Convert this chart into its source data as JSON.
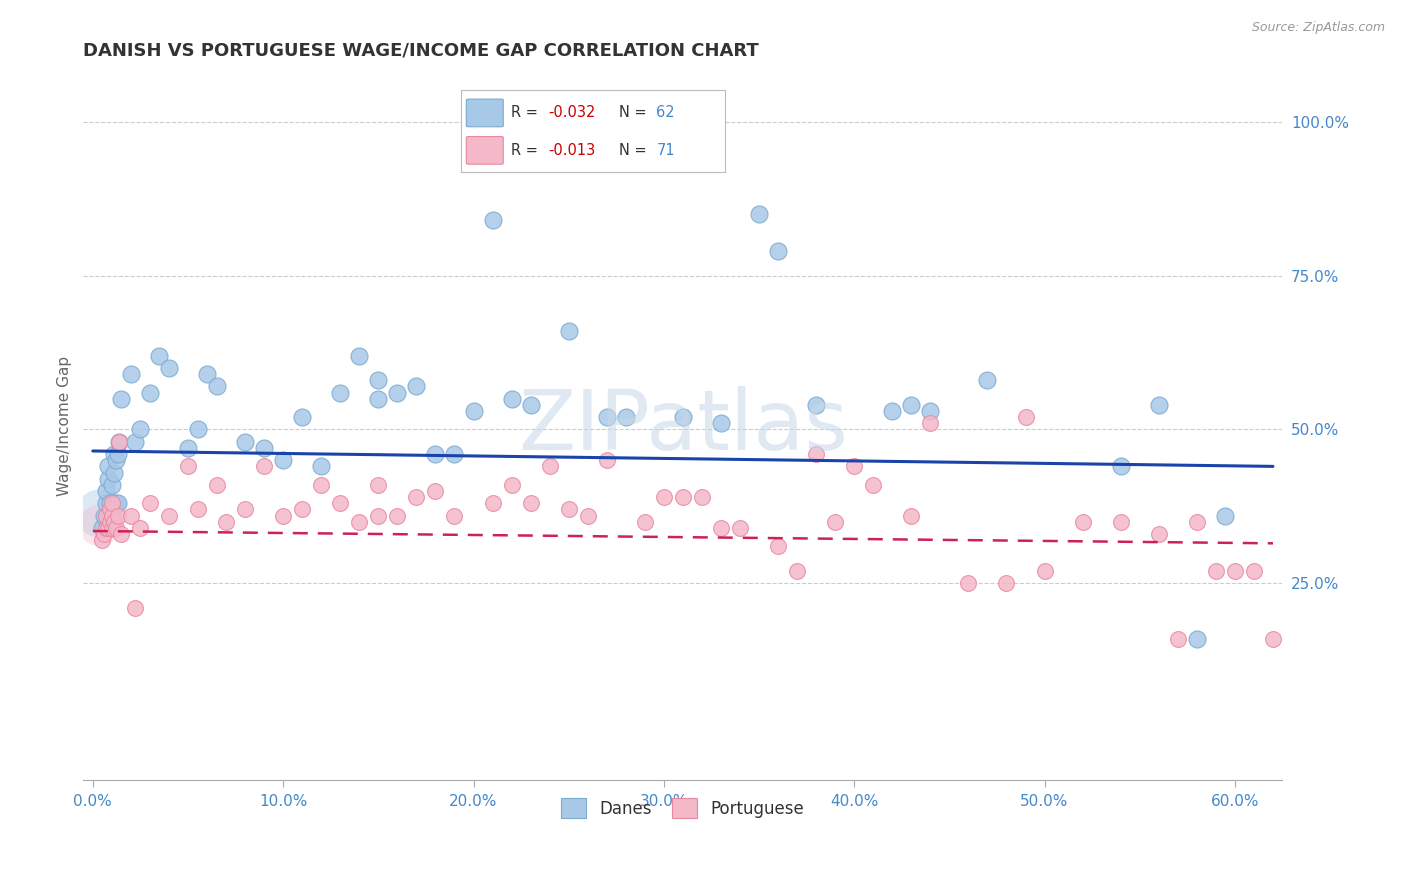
{
  "title": "DANISH VS PORTUGUESE WAGE/INCOME GAP CORRELATION CHART",
  "source": "Source: ZipAtlas.com",
  "ylabel": "Wage/Income Gap",
  "xlabel_ticks": [
    "0.0%",
    "10.0%",
    "20.0%",
    "30.0%",
    "40.0%",
    "50.0%",
    "60.0%"
  ],
  "xlabel_vals": [
    0.0,
    0.1,
    0.2,
    0.3,
    0.4,
    0.5,
    0.6
  ],
  "ylabel_ticks_right": [
    "100.0%",
    "75.0%",
    "50.0%",
    "25.0%"
  ],
  "ylabel_vals_right": [
    1.0,
    0.75,
    0.5,
    0.25
  ],
  "xlim": [
    -0.005,
    0.625
  ],
  "ylim": [
    -0.07,
    1.08
  ],
  "danes_R": "-0.032",
  "danes_N": 62,
  "portuguese_R": "-0.013",
  "portuguese_N": 71,
  "danes_color": "#a8c8e8",
  "portuguese_color": "#f4b8c8",
  "danes_edge_color": "#7aaace",
  "portuguese_edge_color": "#e888a0",
  "trendline_danes_color": "#1a44aa",
  "trendline_portuguese_color": "#cc2255",
  "background_color": "#ffffff",
  "grid_color": "#cccccc",
  "axis_label_color": "#4488cc",
  "title_color": "#333333",
  "watermark_text": "ZIPatlas",
  "legend_r_color": "#cc0000",
  "legend_n_color": "#4488cc",
  "danes_x": [
    0.005,
    0.006,
    0.007,
    0.007,
    0.008,
    0.008,
    0.009,
    0.009,
    0.01,
    0.01,
    0.01,
    0.011,
    0.011,
    0.012,
    0.012,
    0.013,
    0.013,
    0.014,
    0.015,
    0.02,
    0.022,
    0.025,
    0.03,
    0.035,
    0.04,
    0.05,
    0.055,
    0.06,
    0.065,
    0.08,
    0.09,
    0.1,
    0.11,
    0.12,
    0.13,
    0.14,
    0.15,
    0.15,
    0.16,
    0.17,
    0.18,
    0.19,
    0.2,
    0.21,
    0.22,
    0.23,
    0.25,
    0.27,
    0.28,
    0.31,
    0.33,
    0.35,
    0.36,
    0.38,
    0.42,
    0.43,
    0.44,
    0.47,
    0.54,
    0.56,
    0.58,
    0.595
  ],
  "danes_y": [
    0.34,
    0.36,
    0.38,
    0.4,
    0.42,
    0.44,
    0.36,
    0.38,
    0.34,
    0.37,
    0.41,
    0.43,
    0.46,
    0.38,
    0.45,
    0.38,
    0.46,
    0.48,
    0.55,
    0.59,
    0.48,
    0.5,
    0.56,
    0.62,
    0.6,
    0.47,
    0.5,
    0.59,
    0.57,
    0.48,
    0.47,
    0.45,
    0.52,
    0.44,
    0.56,
    0.62,
    0.55,
    0.58,
    0.56,
    0.57,
    0.46,
    0.46,
    0.53,
    0.84,
    0.55,
    0.54,
    0.66,
    0.52,
    0.52,
    0.52,
    0.51,
    0.85,
    0.79,
    0.54,
    0.53,
    0.54,
    0.53,
    0.58,
    0.44,
    0.54,
    0.16,
    0.36
  ],
  "portuguese_x": [
    0.005,
    0.006,
    0.007,
    0.007,
    0.008,
    0.009,
    0.009,
    0.01,
    0.01,
    0.01,
    0.011,
    0.012,
    0.013,
    0.014,
    0.015,
    0.02,
    0.022,
    0.025,
    0.03,
    0.04,
    0.05,
    0.055,
    0.065,
    0.07,
    0.08,
    0.09,
    0.1,
    0.11,
    0.12,
    0.13,
    0.14,
    0.15,
    0.15,
    0.16,
    0.17,
    0.18,
    0.19,
    0.21,
    0.22,
    0.23,
    0.24,
    0.25,
    0.26,
    0.27,
    0.29,
    0.3,
    0.31,
    0.32,
    0.33,
    0.34,
    0.36,
    0.37,
    0.38,
    0.39,
    0.4,
    0.41,
    0.43,
    0.44,
    0.46,
    0.48,
    0.49,
    0.5,
    0.52,
    0.54,
    0.56,
    0.57,
    0.58,
    0.59,
    0.6,
    0.61,
    0.62
  ],
  "portuguese_y": [
    0.32,
    0.33,
    0.34,
    0.36,
    0.34,
    0.35,
    0.37,
    0.34,
    0.36,
    0.38,
    0.35,
    0.34,
    0.36,
    0.48,
    0.33,
    0.36,
    0.21,
    0.34,
    0.38,
    0.36,
    0.44,
    0.37,
    0.41,
    0.35,
    0.37,
    0.44,
    0.36,
    0.37,
    0.41,
    0.38,
    0.35,
    0.41,
    0.36,
    0.36,
    0.39,
    0.4,
    0.36,
    0.38,
    0.41,
    0.38,
    0.44,
    0.37,
    0.36,
    0.45,
    0.35,
    0.39,
    0.39,
    0.39,
    0.34,
    0.34,
    0.31,
    0.27,
    0.46,
    0.35,
    0.44,
    0.41,
    0.36,
    0.51,
    0.25,
    0.25,
    0.52,
    0.27,
    0.35,
    0.35,
    0.33,
    0.16,
    0.35,
    0.27,
    0.27,
    0.27,
    0.16
  ]
}
